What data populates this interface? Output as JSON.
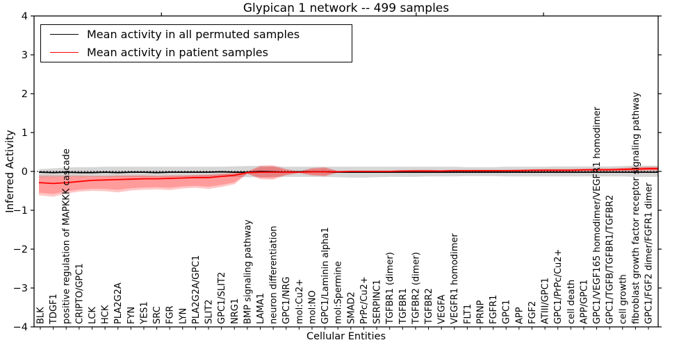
{
  "figure": {
    "background": "#ffffff",
    "border_color": "#000000"
  },
  "legend": {
    "position": "upper left",
    "items": [
      {
        "label": "Mean activity in all permuted samples",
        "color": "#000000"
      },
      {
        "label": "Mean activity in patient samples",
        "color": "#ff0000"
      }
    ]
  },
  "chart_data": {
    "type": "line",
    "title": "Glypican 1 network -- 499 samples",
    "xlabel": "Cellular Entities",
    "ylabel": "Inferred Activity",
    "ylim": [
      -4,
      4
    ],
    "ytick_labels": [
      "4",
      "3",
      "2",
      "1",
      "0",
      "−1",
      "−2",
      "−3",
      "−4"
    ],
    "ytick_values": [
      4,
      3,
      2,
      1,
      0,
      -1,
      -2,
      -3,
      -4
    ],
    "x_axis_range": [
      0,
      49
    ],
    "x_axis_minor_tick_values": [
      10,
      20,
      30,
      40
    ],
    "grid": false,
    "legend_position": "upper left",
    "zero_line": {
      "value": 0,
      "style": "dotted",
      "color": "#000000"
    },
    "categories": [
      "BLK",
      "TDGF1",
      "positive regulation of MAPKKK cascade",
      "CRIPTO/GPC1",
      "LCK",
      "HCK",
      "PLA2G2A",
      "FYN",
      "YES1",
      "SRC",
      "FGR",
      "LYN",
      "PLA2G2A/GPC1",
      "SLIT2",
      "GPC1/SLIT2",
      "NRG1",
      "BMP signaling pathway",
      "LAMA1",
      "neuron differentiation",
      "GPC1/NRG",
      "mol:Cu2+",
      "mol:NO",
      "GPC1/Laminin alpha1",
      "mol:Spermine",
      "SMAD2",
      "PrPc/Cu2+",
      "SERPINC1",
      "TGFBR1 (dimer)",
      "TGFBR1",
      "TGFBR2 (dimer)",
      "TGFBR2",
      "VEGFA",
      "VEGFR1 homodimer",
      "FLT1",
      "PRNP",
      "FGFR1",
      "GPC1",
      "APP",
      "FGF2",
      "ATIII/GPC1",
      "GPC1/PrPc/Cu2+",
      "cell death",
      "APP/GPC1",
      "GPC1/VEGF165 homodimer/VEGFR1 homodimer",
      "GPC1/TGFB/TGFBR1/TGFBR2",
      "cell growth",
      "fibroblast growth factor receptor signaling pathway",
      "GPC1/FGF2 dimer/FGFR1 dimer"
    ],
    "series": [
      {
        "name": "Mean activity in all permuted samples",
        "color": "#000000",
        "band_color": "rgba(0,0,0,0.16)",
        "values": [
          -0.02,
          -0.03,
          -0.02,
          -0.03,
          -0.03,
          -0.02,
          -0.03,
          -0.02,
          -0.02,
          -0.03,
          -0.02,
          -0.02,
          -0.02,
          -0.02,
          -0.01,
          -0.02,
          -0.02,
          0.0,
          -0.01,
          -0.02,
          -0.01,
          -0.01,
          -0.01,
          -0.02,
          -0.02,
          -0.02,
          -0.02,
          -0.02,
          -0.02,
          -0.02,
          -0.02,
          -0.02,
          -0.02,
          -0.02,
          -0.02,
          -0.02,
          -0.02,
          -0.02,
          -0.02,
          -0.02,
          -0.02,
          -0.02,
          -0.02,
          -0.02,
          -0.02,
          -0.02,
          -0.02,
          -0.02
        ],
        "band_hi": [
          0.06,
          0.08,
          0.1,
          0.11,
          0.11,
          0.12,
          0.12,
          0.12,
          0.12,
          0.12,
          0.12,
          0.12,
          0.12,
          0.12,
          0.12,
          0.13,
          0.14,
          0.14,
          0.13,
          0.12,
          0.12,
          0.12,
          0.12,
          0.12,
          0.12,
          0.12,
          0.12,
          0.12,
          0.12,
          0.12,
          0.12,
          0.12,
          0.12,
          0.11,
          0.11,
          0.11,
          0.12,
          0.12,
          0.12,
          0.12,
          0.13,
          0.13,
          0.13,
          0.13,
          0.13,
          0.14,
          0.15,
          0.15
        ],
        "band_lo": [
          -0.15,
          -0.15,
          -0.14,
          -0.14,
          -0.14,
          -0.14,
          -0.14,
          -0.14,
          -0.14,
          -0.14,
          -0.14,
          -0.14,
          -0.14,
          -0.14,
          -0.14,
          -0.14,
          -0.15,
          -0.15,
          -0.14,
          -0.14,
          -0.14,
          -0.14,
          -0.14,
          -0.15,
          -0.16,
          -0.16,
          -0.15,
          -0.14,
          -0.14,
          -0.14,
          -0.13,
          -0.13,
          -0.13,
          -0.12,
          -0.12,
          -0.12,
          -0.13,
          -0.13,
          -0.13,
          -0.13,
          -0.13,
          -0.13,
          -0.13,
          -0.13,
          -0.13,
          -0.13,
          -0.14,
          -0.14
        ]
      },
      {
        "name": "Mean activity in patient samples",
        "color": "#ff0000",
        "band_color": "rgba(255,0,0,0.22)",
        "values": [
          -0.29,
          -0.31,
          -0.29,
          -0.26,
          -0.23,
          -0.22,
          -0.21,
          -0.2,
          -0.19,
          -0.19,
          -0.18,
          -0.17,
          -0.16,
          -0.16,
          -0.13,
          -0.1,
          -0.03,
          -0.02,
          -0.02,
          -0.02,
          -0.02,
          -0.01,
          -0.01,
          -0.01,
          0.0,
          0.0,
          0.0,
          0.0,
          0.01,
          0.01,
          0.01,
          0.01,
          0.02,
          0.02,
          0.02,
          0.02,
          0.02,
          0.02,
          0.03,
          0.03,
          0.03,
          0.03,
          0.04,
          0.04,
          0.04,
          0.05,
          0.06,
          0.07
        ],
        "band_hi": [
          -0.1,
          -0.1,
          -0.1,
          -0.1,
          -0.11,
          -0.11,
          -0.1,
          -0.1,
          -0.1,
          -0.11,
          -0.1,
          -0.1,
          -0.09,
          -0.08,
          -0.06,
          -0.04,
          0.0,
          0.15,
          0.16,
          0.06,
          0.0,
          0.09,
          0.11,
          0.01,
          0.02,
          0.02,
          0.02,
          0.02,
          0.03,
          0.04,
          0.04,
          0.03,
          0.04,
          0.04,
          0.04,
          0.04,
          0.04,
          0.05,
          0.05,
          0.06,
          0.06,
          0.06,
          0.07,
          0.08,
          0.08,
          0.09,
          0.11,
          0.12
        ],
        "band_lo": [
          -0.62,
          -0.65,
          -0.57,
          -0.52,
          -0.5,
          -0.51,
          -0.54,
          -0.49,
          -0.47,
          -0.46,
          -0.48,
          -0.44,
          -0.42,
          -0.45,
          -0.4,
          -0.33,
          -0.06,
          -0.2,
          -0.21,
          -0.1,
          -0.04,
          -0.11,
          -0.13,
          -0.03,
          -0.03,
          -0.03,
          -0.03,
          -0.03,
          -0.02,
          -0.02,
          -0.02,
          -0.01,
          -0.01,
          -0.01,
          -0.01,
          -0.01,
          -0.01,
          -0.01,
          0.0,
          0.0,
          0.0,
          0.0,
          0.01,
          0.01,
          0.01,
          0.01,
          0.01,
          0.02
        ]
      }
    ]
  }
}
